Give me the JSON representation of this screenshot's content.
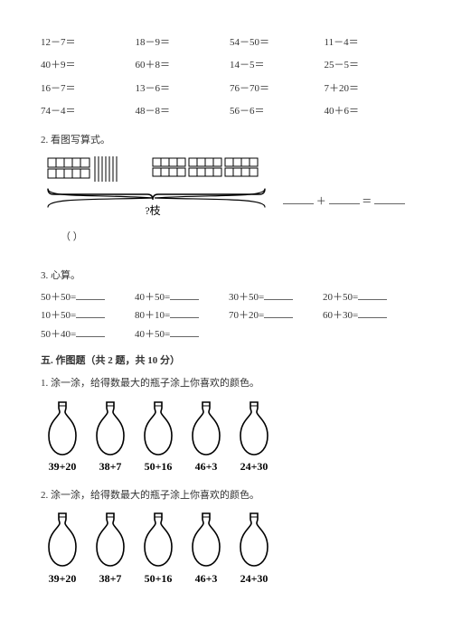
{
  "arith_grid": [
    [
      "12－7＝",
      "18－9＝",
      "54－50＝",
      "11－4＝"
    ],
    [
      "40＋9＝",
      "60＋8＝",
      "14－5＝",
      "25－5＝"
    ],
    [
      "16－7＝",
      "13－6＝",
      "76－70＝",
      "7＋20＝"
    ],
    [
      "74－4＝",
      "48－8＝",
      "56－6＝",
      "40＋6＝"
    ]
  ],
  "q2": {
    "title": "2. 看图写算式。",
    "caption": "?枝",
    "paren": "（        ）"
  },
  "q3": {
    "title": "3. 心算。",
    "rows": [
      [
        "50＋50=",
        "40＋50=",
        "30＋50=",
        "20＋50="
      ],
      [
        "10＋50=",
        "80＋10=",
        "70＋20=",
        "60＋30="
      ],
      [
        "50＋40=",
        "40＋50=",
        "",
        ""
      ]
    ]
  },
  "section5": {
    "heading": "五. 作图题（共 2 题，共 10 分）",
    "q1": "1. 涂一涂，给得数最大的瓶子涂上你喜欢的颜色。",
    "q2": "2. 涂一涂，给得数最大的瓶子涂上你喜欢的颜色。",
    "bottles": [
      "39+20",
      "38+7",
      "50+16",
      "46+3",
      "24+30"
    ]
  },
  "colors": {
    "text": "#333333",
    "stroke": "#000000"
  }
}
